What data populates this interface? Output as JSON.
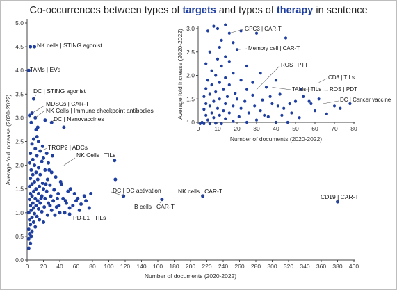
{
  "title": {
    "prefix": "Co-occurrences between types of ",
    "hl1": "targets",
    "mid": " and types of ",
    "hl2": "therapy",
    "suffix": " in sentence"
  },
  "colors": {
    "point": "#1f3fa0",
    "axis": "#444444",
    "leader": "#555555"
  },
  "chart_data": [
    {
      "type": "scatter",
      "xlabel": "Number of documents (2020-2022)",
      "ylabel": "Average fold increase (2020-2022)",
      "xlim": [
        0,
        400
      ],
      "ylim": [
        0,
        5
      ],
      "xticks": [
        0,
        20,
        40,
        60,
        80,
        100,
        120,
        140,
        160,
        180,
        200,
        220,
        240,
        260,
        280,
        300,
        320,
        340,
        360,
        380,
        400
      ],
      "yticks": [
        0.0,
        0.5,
        1.0,
        1.5,
        2.0,
        2.5,
        3.0,
        3.5,
        4.0,
        4.5,
        5.0
      ],
      "points": [
        [
          4,
          4.5
        ],
        [
          9,
          4.5
        ],
        [
          2,
          4.0
        ],
        [
          8,
          3.4
        ],
        [
          6,
          3.1
        ],
        [
          3,
          3.05
        ],
        [
          10,
          3.0
        ],
        [
          5,
          2.9
        ],
        [
          22,
          2.95
        ],
        [
          11,
          2.75
        ],
        [
          30,
          2.9
        ],
        [
          45,
          2.8
        ],
        [
          12,
          2.6
        ],
        [
          8,
          2.55
        ],
        [
          14,
          2.5
        ],
        [
          6,
          2.45
        ],
        [
          10,
          2.35
        ],
        [
          16,
          2.3
        ],
        [
          4,
          2.25
        ],
        [
          12,
          2.2
        ],
        [
          20,
          2.15
        ],
        [
          7,
          2.12
        ],
        [
          18,
          2.08
        ],
        [
          3,
          2.05
        ],
        [
          26,
          2.05
        ],
        [
          9,
          2.0
        ],
        [
          14,
          1.95
        ],
        [
          5,
          1.9
        ],
        [
          22,
          1.9
        ],
        [
          11,
          1.85
        ],
        [
          30,
          1.85
        ],
        [
          7,
          1.8
        ],
        [
          16,
          1.8
        ],
        [
          35,
          1.75
        ],
        [
          4,
          1.72
        ],
        [
          13,
          1.7
        ],
        [
          25,
          1.7
        ],
        [
          9,
          1.65
        ],
        [
          19,
          1.62
        ],
        [
          42,
          1.6
        ],
        [
          6,
          1.6
        ],
        [
          28,
          1.58
        ],
        [
          15,
          1.55
        ],
        [
          3,
          1.55
        ],
        [
          11,
          1.5
        ],
        [
          20,
          1.5
        ],
        [
          33,
          1.48
        ],
        [
          8,
          1.45
        ],
        [
          24,
          1.45
        ],
        [
          50,
          1.45
        ],
        [
          4,
          1.4
        ],
        [
          14,
          1.4
        ],
        [
          38,
          1.4
        ],
        [
          58,
          1.4
        ],
        [
          6,
          1.35
        ],
        [
          18,
          1.35
        ],
        [
          29,
          1.35
        ],
        [
          70,
          1.35
        ],
        [
          10,
          1.3
        ],
        [
          22,
          1.3
        ],
        [
          44,
          1.3
        ],
        [
          3,
          1.28
        ],
        [
          13,
          1.25
        ],
        [
          32,
          1.25
        ],
        [
          60,
          1.25
        ],
        [
          7,
          1.2
        ],
        [
          16,
          1.2
        ],
        [
          26,
          1.2
        ],
        [
          48,
          1.2
        ],
        [
          78,
          1.4
        ],
        [
          4,
          1.15
        ],
        [
          11,
          1.15
        ],
        [
          21,
          1.12
        ],
        [
          36,
          1.12
        ],
        [
          66,
          1.18
        ],
        [
          8,
          1.1
        ],
        [
          14,
          1.08
        ],
        [
          30,
          1.05
        ],
        [
          52,
          1.1
        ],
        [
          5,
          1.05
        ],
        [
          18,
          1.02
        ],
        [
          40,
          1.0
        ],
        [
          2,
          1.0
        ],
        [
          9,
          0.98
        ],
        [
          25,
          0.95
        ],
        [
          46,
          1.0
        ],
        [
          12,
          0.92
        ],
        [
          6,
          0.9
        ],
        [
          34,
          0.95
        ],
        [
          3,
          0.85
        ],
        [
          15,
          0.85
        ],
        [
          8,
          0.8
        ],
        [
          20,
          0.8
        ],
        [
          4,
          0.75
        ],
        [
          10,
          0.7
        ],
        [
          2,
          0.65
        ],
        [
          6,
          0.6
        ],
        [
          3,
          0.55
        ],
        [
          5,
          0.5
        ],
        [
          2,
          0.45
        ],
        [
          4,
          0.35
        ],
        [
          2,
          0.25
        ],
        [
          17,
          1.3
        ],
        [
          23,
          1.6
        ],
        [
          27,
          1.9
        ],
        [
          31,
          2.2
        ],
        [
          37,
          1.3
        ],
        [
          41,
          1.65
        ],
        [
          47,
          1.25
        ],
        [
          53,
          1.5
        ],
        [
          56,
          1.15
        ],
        [
          62,
          1.3
        ],
        [
          64,
          1.05
        ],
        [
          72,
          1.25
        ],
        [
          76,
          1.1
        ],
        [
          19,
          2.4
        ],
        [
          13,
          2.8
        ],
        [
          24,
          2.25
        ],
        [
          28,
          1.15
        ],
        [
          39,
          1.15
        ],
        [
          52,
          0.97
        ],
        [
          107,
          2.1
        ],
        [
          108,
          1.7
        ],
        [
          118,
          1.35
        ],
        [
          165,
          1.28
        ],
        [
          215,
          1.35
        ],
        [
          380,
          1.23
        ]
      ],
      "annotations": [
        {
          "text": "NK cells | STING agonist",
          "x": 9,
          "y": 4.5
        },
        {
          "text": "TAMs  | EVs",
          "x": 2,
          "y": 4.0
        },
        {
          "text": "DC | STING agonist",
          "x": 8,
          "y": 3.4
        },
        {
          "text": "MDSCs | CAR-T",
          "x": 6,
          "y": 3.1
        },
        {
          "text": "NK Cells | Immune checkpoint antibodies",
          "x": 10,
          "y": 3.0
        },
        {
          "text": "DC | Nanovaccines",
          "x": 30,
          "y": 2.9
        },
        {
          "text": "TROP2 | ADCs",
          "x": 16,
          "y": 2.3
        },
        {
          "text": "NK Cells | TILs",
          "x": 45,
          "y": 2.0
        },
        {
          "text": "DC | DC activation",
          "x": 118,
          "y": 1.35
        },
        {
          "text": "NK cells | CAR-T",
          "x": 215,
          "y": 1.35
        },
        {
          "text": "B cells | CAR-T",
          "x": 165,
          "y": 1.28
        },
        {
          "text": "CD19 | CAR-T",
          "x": 380,
          "y": 1.23
        },
        {
          "text": "PD-L1 | TILs",
          "x": 52,
          "y": 0.97
        }
      ]
    },
    {
      "type": "scatter",
      "xlabel": "Number of documents (2020-2022)",
      "ylabel": "Average fold increase (2020-2022)",
      "xlim": [
        0,
        80
      ],
      "ylim": [
        1.0,
        3.0
      ],
      "xticks": [
        0,
        10,
        20,
        30,
        40,
        50,
        60,
        70,
        80
      ],
      "yticks": [
        1.0,
        1.5,
        2.0,
        2.5,
        3.0
      ],
      "points": [
        [
          8,
          3.05
        ],
        [
          10,
          3.0
        ],
        [
          14,
          3.08
        ],
        [
          16,
          2.9
        ],
        [
          22,
          2.95
        ],
        [
          5,
          2.95
        ],
        [
          12,
          2.75
        ],
        [
          18,
          2.7
        ],
        [
          30,
          2.9
        ],
        [
          45,
          2.8
        ],
        [
          11,
          2.6
        ],
        [
          20,
          2.55
        ],
        [
          6,
          2.5
        ],
        [
          14,
          2.4
        ],
        [
          10,
          2.35
        ],
        [
          16,
          2.3
        ],
        [
          4,
          2.25
        ],
        [
          12,
          2.2
        ],
        [
          25,
          2.2
        ],
        [
          7,
          2.1
        ],
        [
          18,
          2.05
        ],
        [
          32,
          2.05
        ],
        [
          9,
          2.0
        ],
        [
          14,
          1.95
        ],
        [
          5,
          1.9
        ],
        [
          22,
          1.9
        ],
        [
          40,
          1.9
        ],
        [
          11,
          1.85
        ],
        [
          28,
          1.85
        ],
        [
          7,
          1.8
        ],
        [
          16,
          1.8
        ],
        [
          35,
          1.75
        ],
        [
          4,
          1.72
        ],
        [
          13,
          1.7
        ],
        [
          25,
          1.7
        ],
        [
          9,
          1.65
        ],
        [
          19,
          1.62
        ],
        [
          42,
          1.6
        ],
        [
          6,
          1.6
        ],
        [
          28,
          1.58
        ],
        [
          15,
          1.55
        ],
        [
          3,
          1.55
        ],
        [
          11,
          1.5
        ],
        [
          20,
          1.5
        ],
        [
          33,
          1.48
        ],
        [
          8,
          1.45
        ],
        [
          24,
          1.45
        ],
        [
          50,
          1.45
        ],
        [
          4,
          1.4
        ],
        [
          14,
          1.4
        ],
        [
          38,
          1.4
        ],
        [
          58,
          1.4
        ],
        [
          6,
          1.35
        ],
        [
          18,
          1.35
        ],
        [
          29,
          1.35
        ],
        [
          70,
          1.35
        ],
        [
          10,
          1.3
        ],
        [
          22,
          1.3
        ],
        [
          44,
          1.3
        ],
        [
          3,
          1.28
        ],
        [
          13,
          1.25
        ],
        [
          32,
          1.25
        ],
        [
          60,
          1.25
        ],
        [
          7,
          1.2
        ],
        [
          16,
          1.2
        ],
        [
          26,
          1.2
        ],
        [
          48,
          1.2
        ],
        [
          78,
          1.4
        ],
        [
          4,
          1.15
        ],
        [
          11,
          1.15
        ],
        [
          21,
          1.12
        ],
        [
          36,
          1.12
        ],
        [
          66,
          1.18
        ],
        [
          8,
          1.1
        ],
        [
          14,
          1.08
        ],
        [
          30,
          1.05
        ],
        [
          52,
          1.1
        ],
        [
          5,
          1.05
        ],
        [
          18,
          1.02
        ],
        [
          40,
          1.0
        ],
        [
          2,
          1.0
        ],
        [
          9,
          0.98
        ],
        [
          25,
          1.0
        ],
        [
          46,
          1.0
        ],
        [
          1,
          0.97
        ],
        [
          3,
          0.97
        ],
        [
          6,
          0.97
        ],
        [
          12,
          0.97
        ],
        [
          53,
          1.7
        ],
        [
          57,
          1.45
        ],
        [
          62,
          1.5
        ],
        [
          73,
          1.3
        ],
        [
          54,
          1.55
        ],
        [
          47,
          1.4
        ],
        [
          41,
          1.35
        ],
        [
          37,
          1.55
        ],
        [
          34,
          1.15
        ],
        [
          43,
          1.15
        ]
      ],
      "annotations": [
        {
          "text": "GPC3 | CAR-T",
          "x": 16,
          "y": 2.9
        },
        {
          "text": "Memory cell | CAR-T",
          "x": 20,
          "y": 2.55
        },
        {
          "text": "ROS | PTT",
          "x": 30,
          "y": 1.7
        },
        {
          "text": "TAMs | TILs",
          "x": 38,
          "y": 1.75
        },
        {
          "text": "CD8 | TILs",
          "x": 62,
          "y": 1.85
        },
        {
          "text": "ROS | PDT",
          "x": 53,
          "y": 1.7
        },
        {
          "text": "DC | Cancer vaccine",
          "x": 64,
          "y": 1.4
        }
      ]
    }
  ]
}
